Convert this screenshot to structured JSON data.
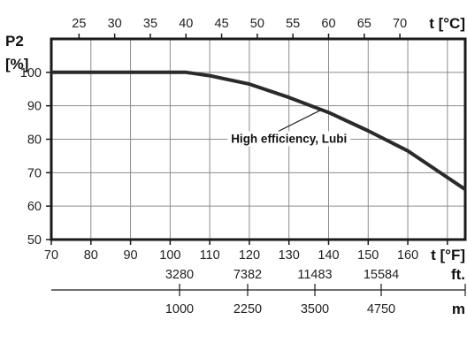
{
  "chart_data": {
    "type": "line",
    "title": "",
    "ylabel_line1": "P2",
    "ylabel_line2": "[%]",
    "ylim": [
      50,
      110
    ],
    "yticks": [
      50,
      60,
      70,
      80,
      90,
      100
    ],
    "x_f_lim": [
      70,
      174.5
    ],
    "x_f_ticks": [
      70,
      80,
      90,
      100,
      110,
      120,
      130,
      140,
      150,
      160
    ],
    "x_f_unit": "t [°F]",
    "x_c_ticks": [
      25,
      30,
      35,
      40,
      45,
      50,
      55,
      60,
      65,
      70
    ],
    "x_c_unit": "t [°C]",
    "altitude_ft_ticks": [
      "3280",
      "7382",
      "11483",
      "15584"
    ],
    "altitude_ft_unit": "ft.",
    "altitude_m_ticks": [
      "1000",
      "2250",
      "3500",
      "4750"
    ],
    "altitude_m_unit": "m",
    "grid": true,
    "series": [
      {
        "name": "High efficiency, Lubi",
        "color": "#2a2a2a",
        "x": [
          70,
          104,
          110,
          120,
          130,
          140,
          150,
          160,
          174.5
        ],
        "y": [
          100,
          100,
          99,
          96.5,
          92.5,
          88,
          82.5,
          76.5,
          65
        ]
      }
    ],
    "annotation": {
      "text": "High efficiency, Lubi",
      "target_x": 138.5,
      "target_y": 89,
      "label_x": 130,
      "label_y": 80
    }
  }
}
